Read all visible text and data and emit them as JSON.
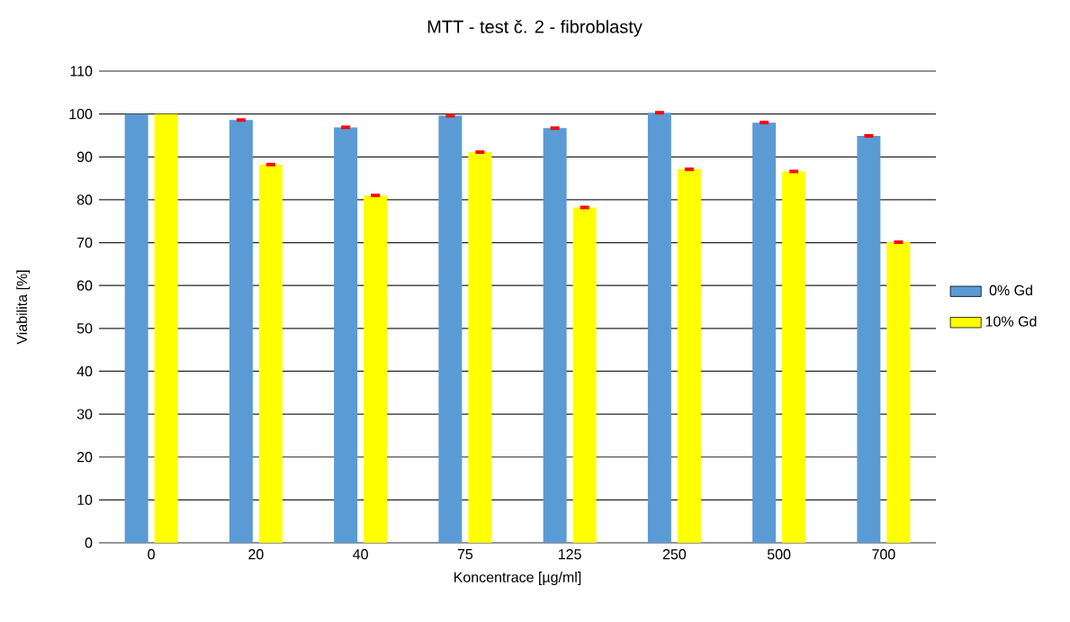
{
  "chart_data": {
    "type": "bar",
    "title": "MTT - test č. 2 - fibroblasty",
    "xlabel": "Koncentrace [µg/ml]",
    "ylabel": "Viabilita [%]",
    "categories": [
      "0",
      "20",
      "40",
      "75",
      "125",
      "250",
      "500",
      "700"
    ],
    "series": [
      {
        "name": "0% Gd",
        "color": "#5b9bd5",
        "values": [
          100,
          98.6,
          96.9,
          99.6,
          96.7,
          100.3,
          98.0,
          94.9
        ],
        "errors": [
          null,
          0.2,
          0.2,
          0.2,
          0.2,
          0.2,
          0.2,
          0.2
        ]
      },
      {
        "name": "10% Gd",
        "color": "#ffff00",
        "values": [
          100,
          88.2,
          81.0,
          91.1,
          78.2,
          87.1,
          86.6,
          70.1
        ],
        "errors": [
          null,
          0.2,
          0.2,
          0.2,
          0.2,
          0.2,
          0.2,
          0.2
        ]
      }
    ],
    "ylim": [
      0,
      110
    ],
    "yticks": [
      0,
      10,
      20,
      30,
      40,
      50,
      60,
      70,
      80,
      90,
      100,
      110
    ],
    "grid": "y",
    "legend": "right"
  }
}
